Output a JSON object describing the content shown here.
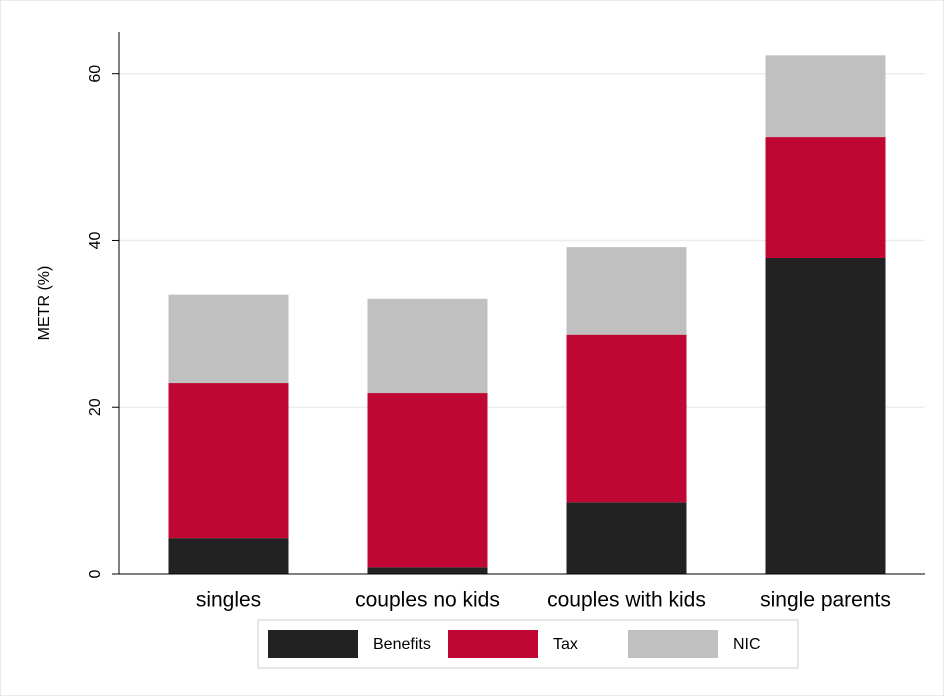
{
  "chart_data": {
    "type": "stacked-bar",
    "y_label": "METR (%)",
    "categories": [
      "singles",
      "couples no kids",
      "couples with kids",
      "single parents"
    ],
    "series": [
      {
        "name": "Benefits",
        "color": "#222222",
        "values": [
          4.3,
          0.8,
          8.6,
          37.9
        ]
      },
      {
        "name": "Tax",
        "color": "#c00632",
        "values": [
          18.6,
          20.9,
          20.1,
          14.5
        ]
      },
      {
        "name": "NIC",
        "color": "#c0c0c0",
        "values": [
          10.6,
          11.3,
          10.5,
          9.8
        ]
      }
    ],
    "ylim": [
      0,
      65
    ],
    "yticks": [
      0,
      20,
      40,
      60
    ],
    "grid": true,
    "legend": "bottom"
  }
}
